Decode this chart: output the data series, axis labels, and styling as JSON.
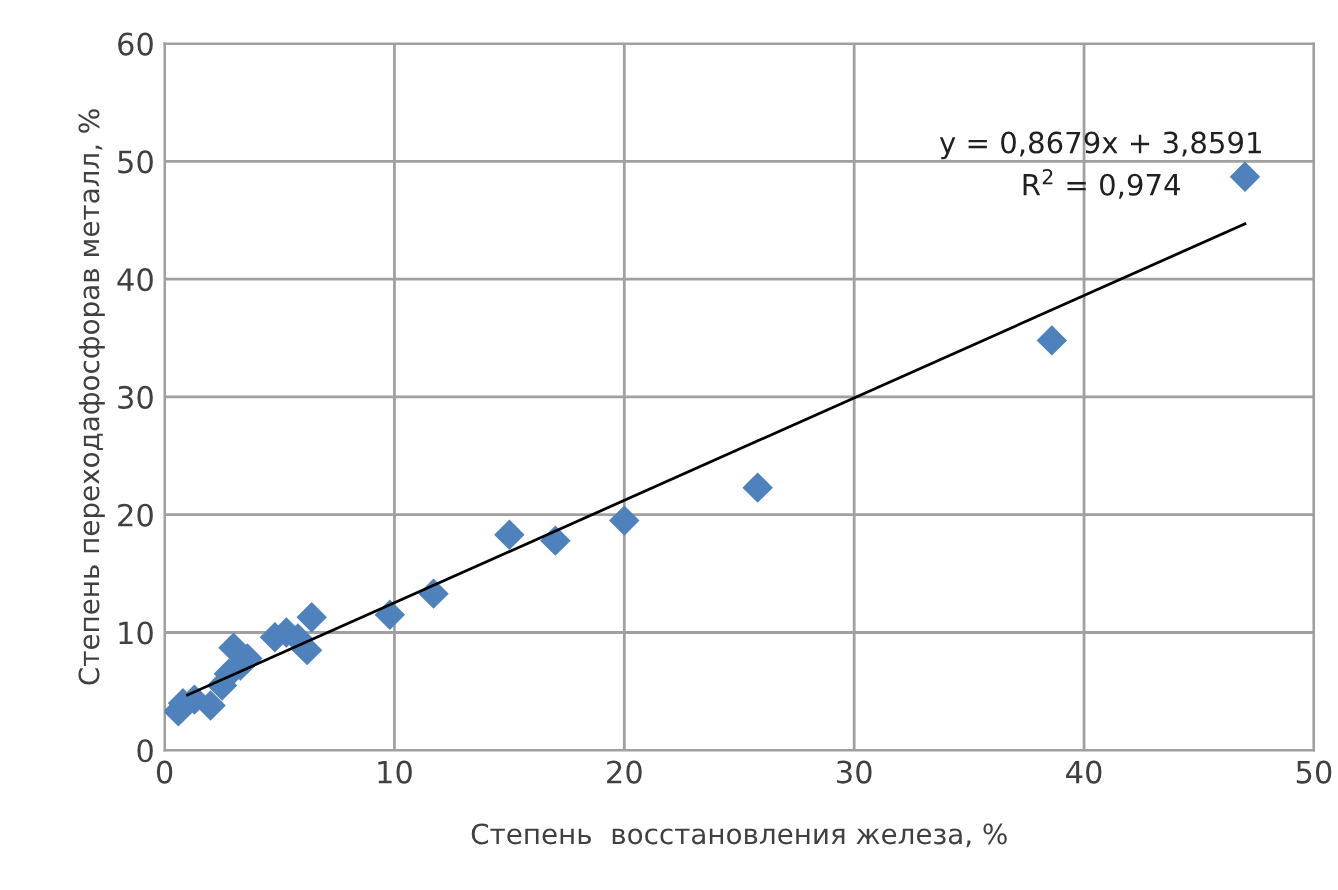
{
  "chart_data": {
    "type": "scatter",
    "xlabel": "Степень  восстановления железа, %",
    "ylabel": "Степень переходафосфорав металл, %",
    "xlim": [
      0,
      50
    ],
    "xticks": [
      0,
      10,
      20,
      30,
      40,
      50
    ],
    "ylim": [
      0,
      60
    ],
    "yticks": [
      0,
      10,
      20,
      30,
      40,
      50,
      60
    ],
    "grid": true,
    "series": [
      {
        "color": "#4f81bd",
        "marker": "diamond",
        "x": [
          0.6,
          0.8,
          1.3,
          2.0,
          2.5,
          2.8,
          3.0,
          3.3,
          3.6,
          4.8,
          5.3,
          5.8,
          6.2,
          6.4,
          9.8,
          11.7,
          15.0,
          17.0,
          20.0,
          25.8,
          38.6,
          47.0
        ],
        "values": [
          3.3,
          4.0,
          4.3,
          3.8,
          5.5,
          6.5,
          8.7,
          7.2,
          7.8,
          9.6,
          10.0,
          9.5,
          8.5,
          11.3,
          11.5,
          13.3,
          18.3,
          17.8,
          19.5,
          22.3,
          34.8,
          48.7
        ]
      },
      {
        "type": "line",
        "color": "#000000",
        "x": [
          1.0,
          47.0
        ],
        "values": [
          4.7,
          44.7
        ]
      }
    ],
    "annotations": [
      "y = 0,8679x + 3,8591",
      "R$^{2}$ = 0,974"
    ]
  }
}
